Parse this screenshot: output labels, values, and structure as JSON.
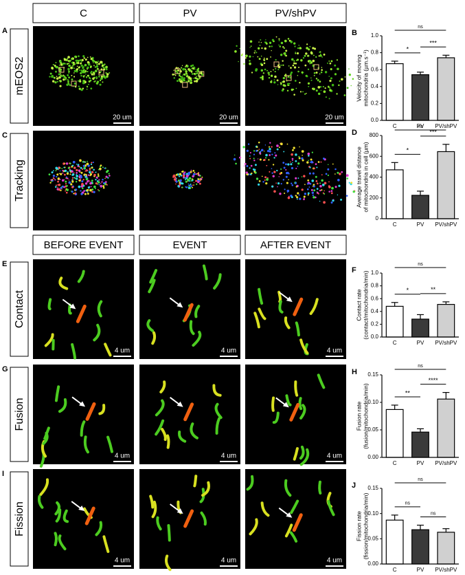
{
  "figure": {
    "column_headers_top": [
      "C",
      "PV",
      "PV/shPV"
    ],
    "column_headers_bottom": [
      "BEFORE EVENT",
      "EVENT",
      "AFTER EVENT"
    ],
    "rows": [
      {
        "letter": "A",
        "label": "mEOS2",
        "scale": "20 um"
      },
      {
        "letter": "C",
        "label": "Tracking"
      },
      {
        "letter": "E",
        "label": "Contact",
        "scale": "4 um"
      },
      {
        "letter": "G",
        "label": "Fusion",
        "scale": "4 um"
      },
      {
        "letter": "I",
        "label": "Fission",
        "scale": "4 um"
      }
    ]
  },
  "chart_data": [
    {
      "type": "bar",
      "letter": "B",
      "ylabel": [
        "Velocity of moving",
        "mitochondria (µm.s⁻¹)"
      ],
      "categories": [
        "C",
        "PV",
        "PV/shPV"
      ],
      "values": [
        0.67,
        0.54,
        0.74
      ],
      "errors": [
        0.03,
        0.03,
        0.03
      ],
      "colors": [
        "#ffffff",
        "#3a3a3a",
        "#d0d0d0"
      ],
      "ylim": [
        0,
        1.0
      ],
      "yticks": [
        {
          "value": 0,
          "label": "0.0"
        },
        0.2,
        0.4,
        0.6,
        0.8,
        {
          "value": 1.0,
          "label": "1.0"
        }
      ],
      "significance": [
        {
          "from": "C",
          "to": "PV/shPV",
          "label": "ns"
        },
        {
          "from": "C",
          "to": "PV",
          "label": "*"
        },
        {
          "from": "PV",
          "to": "PV/shPV",
          "label": "***"
        }
      ]
    },
    {
      "type": "bar",
      "letter": "D",
      "ylabel": [
        "Average travel distance",
        "of mitochondria in cell (µm)"
      ],
      "categories": [
        "C",
        "PV",
        "PV/shPV"
      ],
      "values": [
        470,
        225,
        645
      ],
      "errors": [
        70,
        40,
        70
      ],
      "colors": [
        "#ffffff",
        "#3a3a3a",
        "#d0d0d0"
      ],
      "ylim": [
        0,
        800
      ],
      "yticks": [
        0,
        200,
        400,
        600,
        800
      ],
      "significance": [
        {
          "from": "C",
          "to": "PV/shPV",
          "label": "ns"
        },
        {
          "from": "C",
          "to": "PV",
          "label": "*"
        },
        {
          "from": "PV",
          "to": "PV/shPV",
          "label": "***"
        }
      ]
    },
    {
      "type": "bar",
      "letter": "F",
      "ylabel": [
        "Contact rate",
        "(contact/mitochondria/min)"
      ],
      "categories": [
        "C",
        "PV",
        "PV/shPV"
      ],
      "values": [
        0.48,
        0.28,
        0.51
      ],
      "errors": [
        0.06,
        0.07,
        0.04
      ],
      "colors": [
        "#ffffff",
        "#3a3a3a",
        "#d0d0d0"
      ],
      "ylim": [
        0,
        1.0
      ],
      "yticks": [
        {
          "value": 0,
          "label": "0.0"
        },
        0.2,
        0.4,
        0.6,
        0.8,
        {
          "value": 1.0,
          "label": "1.0"
        }
      ],
      "significance": [
        {
          "from": "C",
          "to": "PV/shPV",
          "label": "ns"
        },
        {
          "from": "C",
          "to": "PV",
          "label": "*"
        },
        {
          "from": "PV",
          "to": "PV/shPV",
          "label": "**"
        }
      ]
    },
    {
      "type": "bar",
      "letter": "H",
      "ylabel": [
        "Fusion rate",
        "(fusion/mitochondria/min)"
      ],
      "categories": [
        "C",
        "PV",
        "PV/shPV"
      ],
      "values": [
        0.087,
        0.046,
        0.106
      ],
      "errors": [
        0.008,
        0.006,
        0.012
      ],
      "colors": [
        "#ffffff",
        "#3a3a3a",
        "#d0d0d0"
      ],
      "ylim": [
        0,
        0.15
      ],
      "yticks": [
        {
          "value": 0,
          "label": "0.00"
        },
        {
          "value": 0.05,
          "label": "0.05"
        },
        {
          "value": 0.1,
          "label": "0.10"
        },
        {
          "value": 0.15,
          "label": "0.15"
        }
      ],
      "significance": [
        {
          "from": "C",
          "to": "PV/shPV",
          "label": "ns"
        },
        {
          "from": "C",
          "to": "PV",
          "label": "**"
        },
        {
          "from": "PV",
          "to": "PV/shPV",
          "label": "****"
        }
      ]
    },
    {
      "type": "bar",
      "letter": "J",
      "ylabel": [
        "Fission rate",
        "(fission/mitochondria/min)"
      ],
      "categories": [
        "C",
        "PV",
        "PV/shPV"
      ],
      "values": [
        0.087,
        0.068,
        0.063
      ],
      "errors": [
        0.01,
        0.009,
        0.007
      ],
      "colors": [
        "#ffffff",
        "#3a3a3a",
        "#d0d0d0"
      ],
      "ylim": [
        0,
        0.15
      ],
      "yticks": [
        {
          "value": 0,
          "label": "0.00"
        },
        {
          "value": 0.05,
          "label": "0.05"
        },
        {
          "value": 0.1,
          "label": "0.10"
        },
        {
          "value": 0.15,
          "label": "0.15"
        }
      ],
      "significance": [
        {
          "from": "C",
          "to": "PV/shPV",
          "label": "ns"
        },
        {
          "from": "C",
          "to": "PV",
          "label": "ns"
        },
        {
          "from": "PV",
          "to": "PV/shPV",
          "label": "ns"
        }
      ]
    }
  ]
}
